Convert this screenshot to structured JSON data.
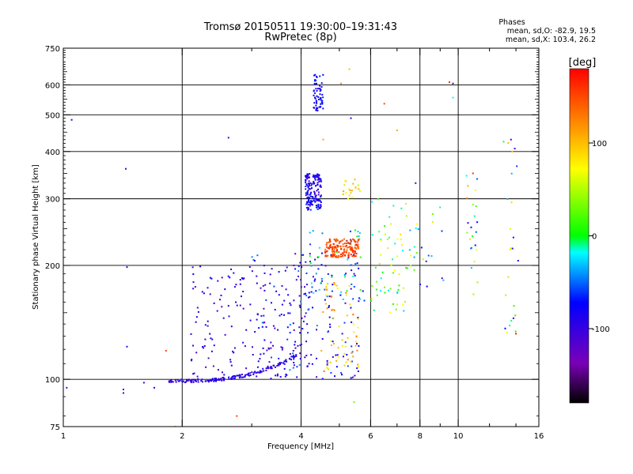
{
  "chart_data": {
    "type": "scatter",
    "title": "Tromsø 20150511 19:30:00–19:31:43",
    "subtitle": "RwPretec (8p)",
    "xlabel": "Frequency [MHz]",
    "ylabel": "Stationary phase Virtual Height [km]",
    "xscale": "log",
    "yscale": "log",
    "xlim": [
      1,
      16
    ],
    "ylim": [
      75,
      750
    ],
    "xticks": [
      1,
      2,
      4,
      6,
      8,
      10,
      16
    ],
    "xtick_labels": [
      "1",
      "2",
      "4",
      "6",
      "8",
      "10",
      "16"
    ],
    "xgrid": [
      2,
      4,
      6,
      8,
      10
    ],
    "xminor": [
      3,
      5,
      7,
      9,
      12,
      14
    ],
    "yticks": [
      75,
      100,
      200,
      300,
      400,
      500,
      600,
      750
    ],
    "ytick_labels": [
      "75",
      "100",
      "200",
      "300",
      "400",
      "500",
      "600",
      "750"
    ],
    "ygrid": [
      100,
      200,
      300,
      400,
      500,
      600
    ],
    "grid": true,
    "colorbar": {
      "label": "[deg]",
      "range": [
        -180,
        180
      ],
      "ticks": [
        100,
        0,
        -100
      ],
      "tick_labels": [
        "100",
        "0",
        "-100"
      ],
      "colormap": "rainbow"
    },
    "stats": {
      "heading": "Phases",
      "line_o": "mean, sd,O: -82.9, 19.5",
      "line_x": "mean, sd,X: 103.4, 26.2"
    },
    "clusters": [
      {
        "x": [
          1.85,
          3.9
        ],
        "y": [
          99,
          116
        ],
        "phase": [
          -110,
          -80
        ],
        "density": "high",
        "shape": "trace"
      },
      {
        "x": [
          2.1,
          4.2
        ],
        "y": [
          100,
          200
        ],
        "phase": [
          -120,
          -80
        ],
        "density": "high"
      },
      {
        "x": [
          3.0,
          5.6
        ],
        "y": [
          100,
          215
        ],
        "phase": [
          -120,
          -40
        ],
        "density": "high"
      },
      {
        "x": [
          4.2,
          5.8
        ],
        "y": [
          160,
          250
        ],
        "phase": [
          -100,
          20
        ],
        "density": "medium"
      },
      {
        "x": [
          4.5,
          5.6
        ],
        "y": [
          105,
          180
        ],
        "phase": [
          60,
          140
        ],
        "density": "medium"
      },
      {
        "x": [
          4.6,
          5.6
        ],
        "y": [
          210,
          235
        ],
        "phase": [
          130,
          170
        ],
        "density": "high"
      },
      {
        "x": [
          4.1,
          4.5
        ],
        "y": [
          280,
          350
        ],
        "phase": [
          -110,
          -60
        ],
        "density": "high"
      },
      {
        "x": [
          4.3,
          4.55
        ],
        "y": [
          510,
          640
        ],
        "phase": [
          -90,
          -60
        ],
        "density": "medium"
      },
      {
        "x": [
          5.1,
          5.7
        ],
        "y": [
          300,
          340
        ],
        "phase": [
          50,
          120
        ],
        "density": "low"
      },
      {
        "x": [
          6.0,
          7.5
        ],
        "y": [
          150,
          300
        ],
        "phase": [
          -30,
          90
        ],
        "density": "medium"
      },
      {
        "x": [
          7.3,
          9.4
        ],
        "y": [
          175,
          290
        ],
        "phase": [
          -90,
          100
        ],
        "density": "low"
      },
      {
        "x": [
          10.5,
          11.2
        ],
        "y": [
          160,
          350
        ],
        "phase": [
          -100,
          120
        ],
        "density": "low"
      },
      {
        "x": [
          13.0,
          14.2
        ],
        "y": [
          130,
          440
        ],
        "phase": [
          -110,
          110
        ],
        "density": "low"
      }
    ],
    "points": [
      {
        "x": 1.02,
        "y": 95,
        "phase": -110
      },
      {
        "x": 1.05,
        "y": 485,
        "phase": -100
      },
      {
        "x": 1.42,
        "y": 92,
        "phase": -110
      },
      {
        "x": 1.42,
        "y": 94,
        "phase": -100
      },
      {
        "x": 1.44,
        "y": 360,
        "phase": -100
      },
      {
        "x": 1.45,
        "y": 198,
        "phase": -110
      },
      {
        "x": 1.45,
        "y": 122,
        "phase": -100
      },
      {
        "x": 1.6,
        "y": 98,
        "phase": -110
      },
      {
        "x": 1.7,
        "y": 95,
        "phase": -90
      },
      {
        "x": 1.82,
        "y": 119,
        "phase": 150
      },
      {
        "x": 1.92,
        "y": 75,
        "phase": 110
      },
      {
        "x": 2.62,
        "y": 435,
        "phase": -110
      },
      {
        "x": 2.75,
        "y": 80,
        "phase": 150
      },
      {
        "x": 5.45,
        "y": 87,
        "phase": 30
      },
      {
        "x": 5.3,
        "y": 660,
        "phase": 100
      },
      {
        "x": 5.05,
        "y": 605,
        "phase": 120
      },
      {
        "x": 6.5,
        "y": 535,
        "phase": 150
      },
      {
        "x": 5.35,
        "y": 490,
        "phase": -90
      },
      {
        "x": 4.55,
        "y": 430,
        "phase": 110
      },
      {
        "x": 7.0,
        "y": 455,
        "phase": 110
      },
      {
        "x": 7.8,
        "y": 330,
        "phase": -110
      },
      {
        "x": 9.5,
        "y": 610,
        "phase": 160
      },
      {
        "x": 9.7,
        "y": 605,
        "phase": -110
      },
      {
        "x": 9.7,
        "y": 555,
        "phase": -20
      },
      {
        "x": 10.5,
        "y": 345,
        "phase": -20
      },
      {
        "x": 10.9,
        "y": 350,
        "phase": 160
      },
      {
        "x": 13.6,
        "y": 430,
        "phase": -110
      },
      {
        "x": 13.7,
        "y": 400,
        "phase": 100
      },
      {
        "x": 14.0,
        "y": 132,
        "phase": 170
      },
      {
        "x": 13.8,
        "y": 145,
        "phase": -100
      },
      {
        "x": 9.1,
        "y": 185,
        "phase": -110
      },
      {
        "x": 8.3,
        "y": 205,
        "phase": -110
      }
    ]
  }
}
